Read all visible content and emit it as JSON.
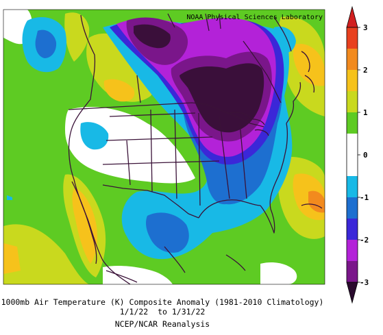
{
  "credit": "NOAA Physical Sciences Laboratory",
  "caption": {
    "line1": "1000mb Air Temperature (K) Composite Anomaly (1981-2010 Climatology)",
    "line2": "1/1/22  to 1/31/22",
    "line3": "NCEP/NCAR Reanalysis"
  },
  "colorbar": {
    "ticks": [
      "3",
      "2",
      "1",
      "0",
      "-1",
      "-2",
      "-3"
    ],
    "bins": [
      {
        "from": 2.5,
        "to": 3.0,
        "color": "#e8401e"
      },
      {
        "from": 2.0,
        "to": 2.5,
        "color": "#f28a1e"
      },
      {
        "from": 1.5,
        "to": 2.0,
        "color": "#f6c21b"
      },
      {
        "from": 1.0,
        "to": 1.5,
        "color": "#c9d91e"
      },
      {
        "from": 0.5,
        "to": 1.0,
        "color": "#5ecb23"
      },
      {
        "from": -0.5,
        "to": 0.5,
        "color": "#ffffff"
      },
      {
        "from": -1.0,
        "to": -0.5,
        "color": "#18b9e6"
      },
      {
        "from": -1.5,
        "to": -1.0,
        "color": "#1d6fd0"
      },
      {
        "from": -2.0,
        "to": -1.5,
        "color": "#3b27d8"
      },
      {
        "from": -2.5,
        "to": -2.0,
        "color": "#b322d8"
      },
      {
        "from": -3.0,
        "to": -2.5,
        "color": "#7a168a"
      }
    ],
    "over_color": "#d11f1f",
    "under_color": "#2a0a2e"
  },
  "colors": {
    "boundary": "#3a1238",
    "extreme_cold": "#3a0f3a"
  }
}
